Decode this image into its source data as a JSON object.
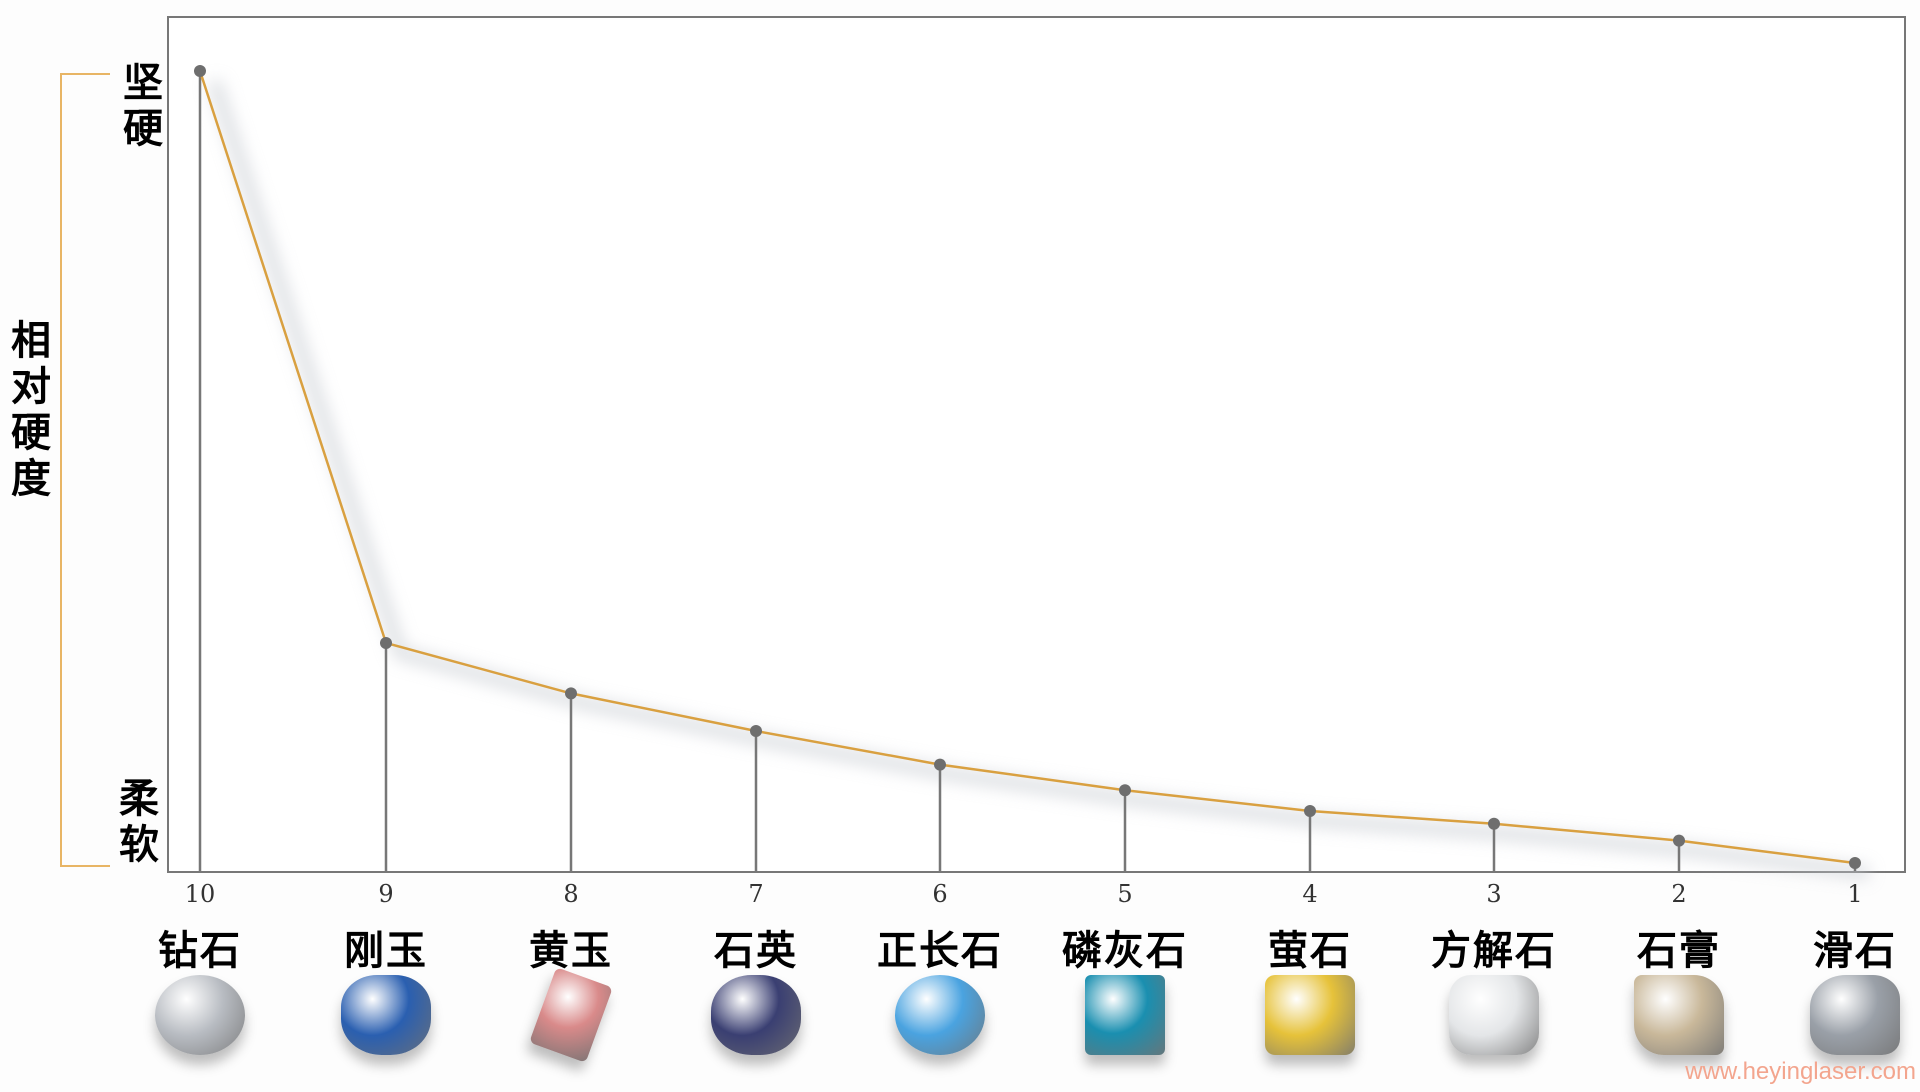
{
  "chart_data": {
    "type": "line",
    "ylabel": "相对硬度",
    "y_top_label": "坚硬",
    "y_bottom_label": "柔软",
    "categories": [
      "10",
      "9",
      "8",
      "7",
      "6",
      "5",
      "4",
      "3",
      "2",
      "1"
    ],
    "minerals": [
      "钻石",
      "刚玉",
      "黄玉",
      "石英",
      "正长石",
      "磷灰石",
      "萤石",
      "方解石",
      "石膏",
      "滑石"
    ],
    "values": [
      1.0,
      0.285,
      0.222,
      0.175,
      0.133,
      0.101,
      0.075,
      0.059,
      0.038,
      0.01
    ],
    "ylim": [
      0,
      1
    ],
    "grid": false,
    "line_color": "#d9a040",
    "bracket_color": "#e8b565",
    "gem_colors": [
      "#b8bcc2",
      "#2a5fb0",
      "#d98a8a",
      "#3a3f72",
      "#4aa3e0",
      "#1a8fb0",
      "#e6c23a",
      "#e4e6e8",
      "#c9b89a",
      "#9aa0a8"
    ]
  },
  "watermark": "www.heyinglaser.com"
}
